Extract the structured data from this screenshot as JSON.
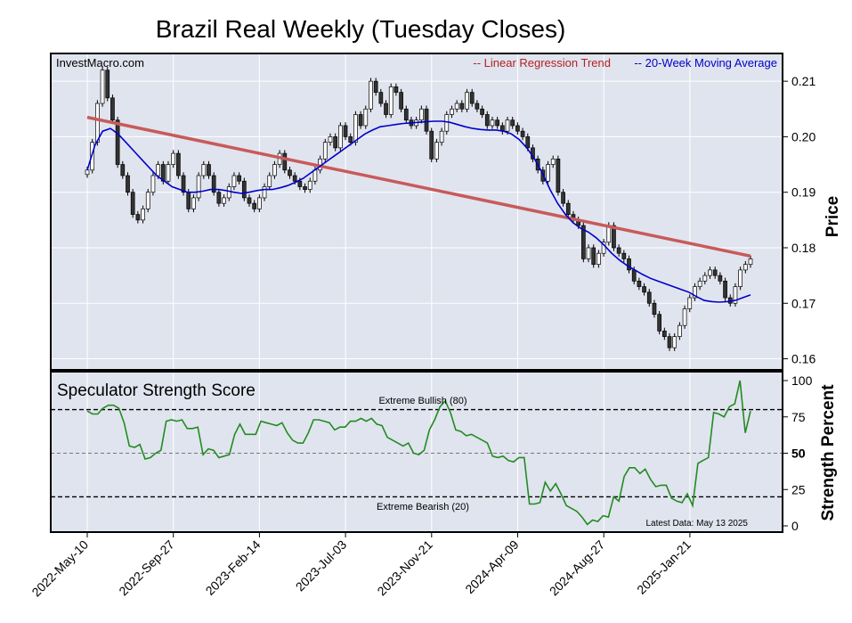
{
  "chart_data": [
    {
      "type": "candlestick",
      "title": "Brazil Real Weekly (Tuesday Closes)",
      "watermark": "InvestMacro.com",
      "ylabel": "Price",
      "ylim": [
        0.158,
        0.215
      ],
      "yticks": [
        "0.16",
        "0.17",
        "0.18",
        "0.19",
        "0.20",
        "0.21"
      ],
      "xticks": [
        "2022-May-10",
        "2022-Sep-27",
        "2023-Feb-14",
        "2023-Jul-03",
        "2023-Nov-21",
        "2024-Apr-09",
        "2024-Aug-27",
        "2025-Jan-21"
      ],
      "grid": true,
      "legend_position": "top-right",
      "legend": [
        "-- Linear Regression Trend",
        "-- 20-Week Moving Average"
      ],
      "colors": {
        "regression": "#c85a5a",
        "moving_average": "#0000cc",
        "up_candle": "#ffffff",
        "down_candle": "#333333",
        "background": "#e0e4ee"
      },
      "regression_line": {
        "start": 0.2035,
        "end": 0.1785
      },
      "closes": [
        0.194,
        0.199,
        0.206,
        0.212,
        0.207,
        0.203,
        0.195,
        0.193,
        0.19,
        0.186,
        0.185,
        0.187,
        0.19,
        0.193,
        0.195,
        0.192,
        0.195,
        0.197,
        0.193,
        0.19,
        0.187,
        0.189,
        0.193,
        0.195,
        0.193,
        0.19,
        0.188,
        0.189,
        0.191,
        0.193,
        0.192,
        0.189,
        0.188,
        0.187,
        0.189,
        0.191,
        0.193,
        0.195,
        0.197,
        0.194,
        0.193,
        0.192,
        0.191,
        0.1905,
        0.192,
        0.194,
        0.196,
        0.199,
        0.2,
        0.198,
        0.202,
        0.2,
        0.199,
        0.204,
        0.202,
        0.205,
        0.21,
        0.208,
        0.206,
        0.204,
        0.209,
        0.208,
        0.205,
        0.203,
        0.202,
        0.203,
        0.205,
        0.201,
        0.196,
        0.199,
        0.201,
        0.204,
        0.205,
        0.206,
        0.205,
        0.208,
        0.206,
        0.205,
        0.204,
        0.202,
        0.203,
        0.202,
        0.201,
        0.203,
        0.202,
        0.201,
        0.2,
        0.198,
        0.196,
        0.194,
        0.192,
        0.195,
        0.196,
        0.19,
        0.188,
        0.186,
        0.185,
        0.184,
        0.178,
        0.18,
        0.177,
        0.179,
        0.181,
        0.184,
        0.18,
        0.179,
        0.178,
        0.176,
        0.174,
        0.173,
        0.172,
        0.17,
        0.168,
        0.165,
        0.164,
        0.162,
        0.164,
        0.166,
        0.169,
        0.171,
        0.173,
        0.174,
        0.175,
        0.176,
        0.175,
        0.174,
        0.171,
        0.17,
        0.173,
        0.176,
        0.177,
        0.178
      ],
      "moving_average": [
        0.194,
        0.1985,
        0.201,
        0.2015,
        0.2005,
        0.199,
        0.1975,
        0.196,
        0.1945,
        0.193,
        0.192,
        0.191,
        0.1905,
        0.19,
        0.19,
        0.1902,
        0.1905,
        0.1905,
        0.1903,
        0.19,
        0.1898,
        0.19,
        0.1903,
        0.1905,
        0.1905,
        0.1908,
        0.1912,
        0.1918,
        0.1925,
        0.1935,
        0.1945,
        0.1955,
        0.1965,
        0.1975,
        0.1985,
        0.1995,
        0.2005,
        0.2012,
        0.2018,
        0.202,
        0.2022,
        0.2024,
        0.2025,
        0.2026,
        0.2027,
        0.2028,
        0.2028,
        0.2026,
        0.2022,
        0.2018,
        0.2015,
        0.2013,
        0.2012,
        0.2012,
        0.201,
        0.2005,
        0.1995,
        0.198,
        0.196,
        0.1935,
        0.1905,
        0.188,
        0.186,
        0.1845,
        0.1835,
        0.1828,
        0.1818,
        0.1805,
        0.179,
        0.1778,
        0.1768,
        0.176,
        0.1752,
        0.1745,
        0.174,
        0.1735,
        0.173,
        0.1725,
        0.172,
        0.1712,
        0.1705,
        0.1703,
        0.1702,
        0.1703,
        0.1705,
        0.171,
        0.1715
      ]
    },
    {
      "type": "line",
      "title": "Speculator Strength Score",
      "ylabel": "Strength Percent",
      "ylim": [
        0,
        100
      ],
      "yticks": [
        "0",
        "25",
        "50",
        "75",
        "100"
      ],
      "reference_lines": [
        {
          "value": 80,
          "label": "Extreme Bullish (80)"
        },
        {
          "value": 50,
          "label": "50"
        },
        {
          "value": 20,
          "label": "Extreme Bearish (20)"
        }
      ],
      "note": "Latest Data: May 13 2025",
      "color": "#228b22",
      "values": [
        79,
        77,
        77,
        81,
        83,
        83,
        81,
        71,
        55,
        54,
        56,
        46,
        47,
        50,
        52,
        72,
        73,
        72,
        73,
        67,
        67,
        68,
        49,
        53,
        52,
        47,
        48,
        49,
        63,
        70,
        63,
        63,
        63,
        72,
        71,
        70,
        69,
        71,
        64,
        59,
        57,
        57,
        64,
        73,
        73,
        72,
        71,
        66,
        68,
        68,
        72,
        72,
        74,
        72,
        74,
        70,
        69,
        61,
        59,
        57,
        55,
        57,
        50,
        49,
        52,
        66,
        73,
        82,
        86,
        78,
        66,
        65,
        62,
        63,
        61,
        59,
        57,
        48,
        47,
        48,
        45,
        44,
        47,
        47,
        15,
        15,
        16,
        30,
        24,
        29,
        22,
        14,
        12,
        10,
        6,
        1,
        4,
        3,
        7,
        6,
        20,
        17,
        34,
        40,
        40,
        36,
        39,
        32,
        27,
        28,
        28,
        19,
        17,
        16,
        22,
        14,
        43,
        45,
        47,
        78,
        77,
        75,
        82,
        84,
        100,
        64,
        79
      ]
    }
  ]
}
